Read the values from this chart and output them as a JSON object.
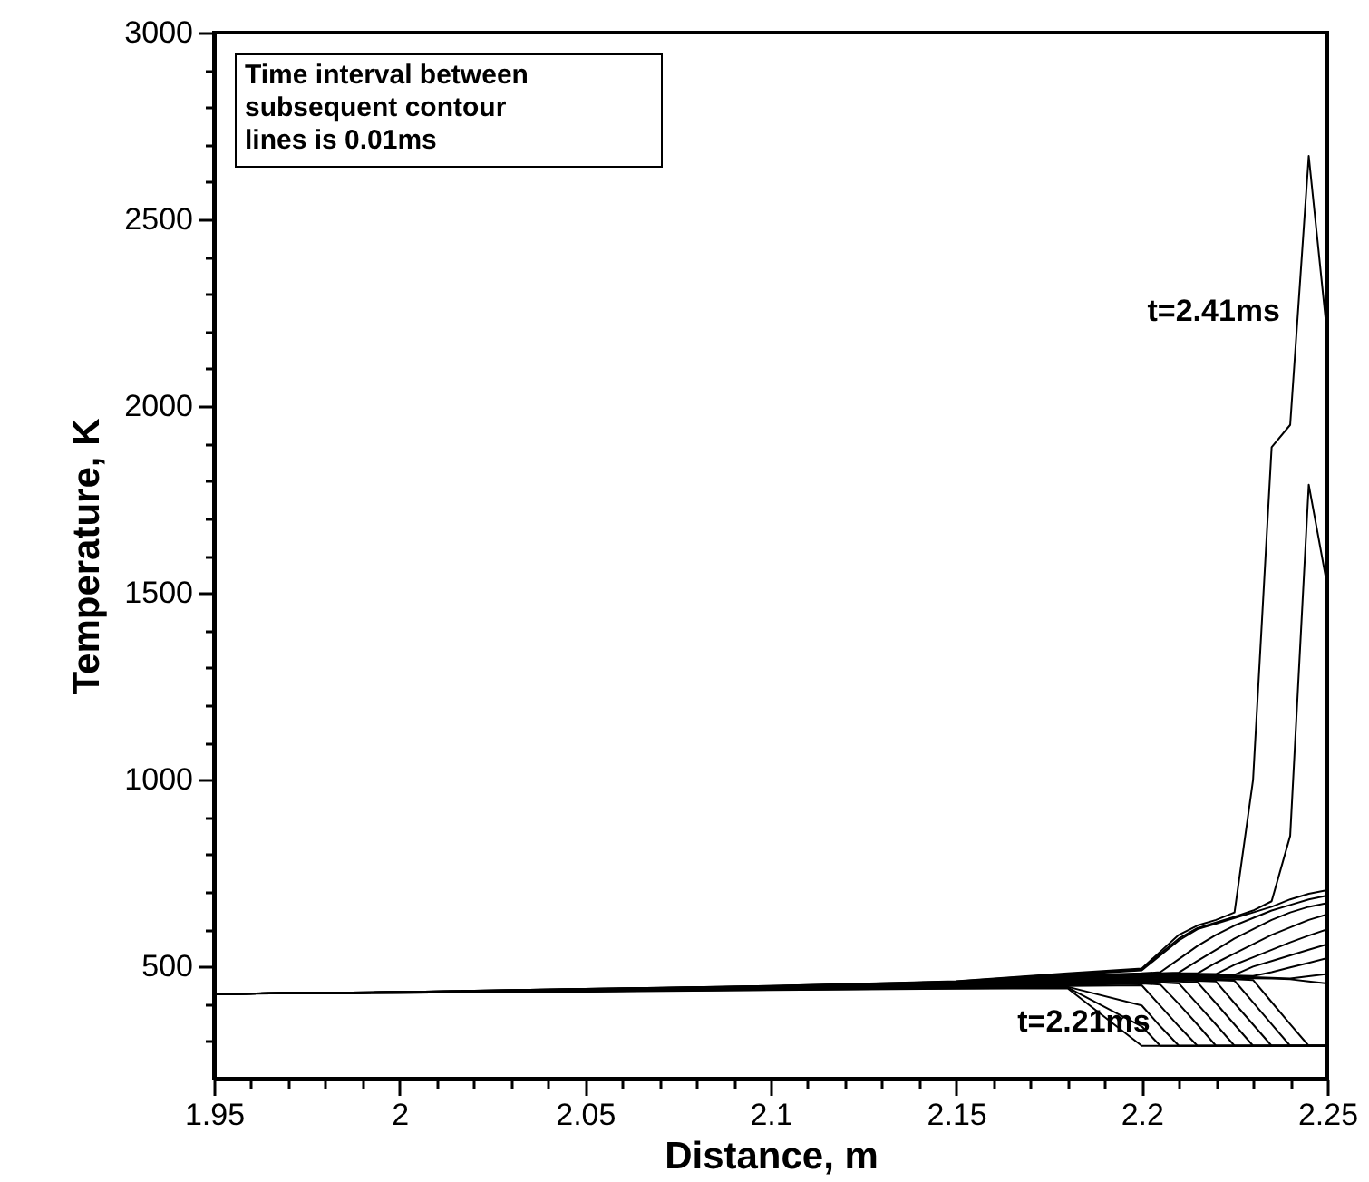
{
  "chart_data": {
    "type": "line",
    "xlabel": "Distance, m",
    "ylabel": "Temperature, K",
    "annotations": [
      "Time interval between subsequent contour lines is 0.01ms",
      {
        "text": "t=2.41ms",
        "x": 2.25,
        "y": 2190
      },
      {
        "text": "t=2.21ms",
        "x": 2.215,
        "y": 288
      }
    ],
    "x": [
      1.95,
      2.0,
      2.05,
      2.1,
      2.15,
      2.18,
      2.2,
      2.205,
      2.21,
      2.215,
      2.22,
      2.225,
      2.23,
      2.235,
      2.24,
      2.245,
      2.25
    ],
    "series": [
      {
        "color": "#000000",
        "values": [
          427,
          430,
          433,
          437,
          441,
          442,
          288,
          288,
          288,
          288,
          288,
          288,
          288,
          288,
          288,
          288,
          288
        ]
      },
      {
        "color": "#000000",
        "values": [
          427,
          430,
          434,
          438,
          442,
          444,
          340,
          288,
          288,
          288,
          288,
          288,
          288,
          288,
          288,
          288,
          288
        ]
      },
      {
        "color": "#000000",
        "values": [
          427,
          430,
          434,
          439,
          443,
          446,
          396,
          340,
          288,
          288,
          288,
          288,
          288,
          288,
          288,
          288,
          288
        ]
      },
      {
        "color": "#000000",
        "values": [
          427,
          431,
          435,
          440,
          444,
          448,
          450,
          395,
          340,
          288,
          288,
          288,
          288,
          288,
          288,
          288,
          288
        ]
      },
      {
        "color": "#000000",
        "values": [
          427,
          431,
          435,
          440,
          445,
          450,
          455,
          452,
          400,
          345,
          288,
          288,
          288,
          288,
          288,
          288,
          288
        ]
      },
      {
        "color": "#000000",
        "values": [
          427,
          431,
          436,
          441,
          446,
          452,
          458,
          458,
          455,
          400,
          345,
          288,
          288,
          288,
          288,
          288,
          288
        ]
      },
      {
        "color": "#000000",
        "values": [
          427,
          431,
          436,
          441,
          447,
          454,
          460,
          461,
          460,
          458,
          402,
          345,
          288,
          288,
          288,
          288,
          288
        ]
      },
      {
        "color": "#000000",
        "values": [
          427,
          431,
          436,
          442,
          448,
          456,
          462,
          463,
          463,
          462,
          460,
          402,
          345,
          288,
          288,
          288,
          288
        ]
      },
      {
        "color": "#000000",
        "values": [
          427,
          431,
          437,
          442,
          449,
          458,
          464,
          465,
          466,
          465,
          464,
          462,
          404,
          346,
          288,
          288,
          288
        ]
      },
      {
        "color": "#000000",
        "values": [
          427,
          431,
          437,
          443,
          450,
          460,
          466,
          467,
          468,
          468,
          467,
          466,
          464,
          405,
          346,
          288,
          288
        ]
      },
      {
        "color": "#000000",
        "values": [
          427,
          431,
          437,
          443,
          451,
          462,
          468,
          470,
          471,
          471,
          471,
          470,
          469,
          468,
          466,
          460,
          455
        ]
      },
      {
        "color": "#000000",
        "values": [
          427,
          431,
          438,
          444,
          452,
          464,
          470,
          472,
          473,
          474,
          474,
          473,
          472,
          470,
          468,
          474,
          480
        ]
      },
      {
        "color": "#000000",
        "values": [
          427,
          431,
          438,
          444,
          453,
          466,
          472,
          474,
          475,
          476,
          476,
          476,
          475,
          485,
          498,
          510,
          523
        ]
      },
      {
        "color": "#000000",
        "values": [
          427,
          431,
          438,
          445,
          454,
          468,
          474,
          476,
          478,
          479,
          479,
          478,
          500,
          515,
          530,
          545,
          560
        ]
      },
      {
        "color": "#000000",
        "values": [
          427,
          431,
          438,
          445,
          455,
          470,
          476,
          478,
          480,
          481,
          480,
          505,
          525,
          545,
          565,
          583,
          600
        ]
      },
      {
        "color": "#000000",
        "values": [
          427,
          431,
          439,
          446,
          456,
          472,
          478,
          480,
          482,
          482,
          510,
          535,
          560,
          585,
          605,
          625,
          640
        ]
      },
      {
        "color": "#000000",
        "values": [
          427,
          431,
          439,
          446,
          457,
          474,
          480,
          482,
          484,
          515,
          545,
          575,
          600,
          625,
          645,
          660,
          670
        ]
      },
      {
        "color": "#000000",
        "values": [
          427,
          432,
          439,
          447,
          458,
          476,
          482,
          485,
          520,
          555,
          585,
          610,
          630,
          650,
          665,
          680,
          690
        ]
      },
      {
        "color": "#000000",
        "values": [
          427,
          432,
          440,
          447,
          459,
          478,
          490,
          530,
          570,
          600,
          615,
          630,
          645,
          660,
          680,
          695,
          705
        ]
      },
      {
        "color": "#000000",
        "values": [
          427,
          432,
          440,
          448,
          460,
          480,
          492,
          535,
          575,
          603,
          618,
          633,
          650,
          675,
          850,
          1790,
          1520
        ]
      },
      {
        "color": "#000000",
        "values": [
          427,
          432,
          440,
          448,
          461,
          482,
          495,
          540,
          585,
          610,
          625,
          645,
          1000,
          1890,
          1950,
          2670,
          2190
        ]
      }
    ],
    "xlim": [
      1.95,
      2.25
    ],
    "xticks": [
      1.95,
      {
        "value": 1.96,
        "label": null
      },
      {
        "value": 1.97,
        "label": null
      },
      {
        "value": 1.98,
        "label": null
      },
      {
        "value": 1.99,
        "label": null
      },
      2,
      {
        "value": 2.01,
        "label": null
      },
      {
        "value": 2.02,
        "label": null
      },
      {
        "value": 2.03,
        "label": null
      },
      {
        "value": 2.04,
        "label": null
      },
      2.05,
      {
        "value": 2.06,
        "label": null
      },
      {
        "value": 2.07,
        "label": null
      },
      {
        "value": 2.08,
        "label": null
      },
      {
        "value": 2.09,
        "label": null
      },
      2.1,
      {
        "value": 2.11,
        "label": null
      },
      {
        "value": 2.12,
        "label": null
      },
      {
        "value": 2.13,
        "label": null
      },
      {
        "value": 2.14,
        "label": null
      },
      2.15,
      {
        "value": 2.16,
        "label": null
      },
      {
        "value": 2.17,
        "label": null
      },
      {
        "value": 2.18,
        "label": null
      },
      {
        "value": 2.19,
        "label": null
      },
      2.2,
      {
        "value": 2.21,
        "label": null
      },
      {
        "value": 2.22,
        "label": null
      },
      {
        "value": 2.23,
        "label": null
      },
      {
        "value": 2.24,
        "label": null
      },
      2.25
    ],
    "ylim": [
      200,
      3000
    ],
    "yticks": [
      {
        "value": 300,
        "label": null
      },
      {
        "value": 400,
        "label": null
      },
      500,
      {
        "value": 600,
        "label": null
      },
      {
        "value": 700,
        "label": null
      },
      {
        "value": 800,
        "label": null
      },
      {
        "value": 900,
        "label": null
      },
      1000,
      {
        "value": 1100,
        "label": null
      },
      {
        "value": 1200,
        "label": null
      },
      {
        "value": 1300,
        "label": null
      },
      {
        "value": 1400,
        "label": null
      },
      1500,
      {
        "value": 1600,
        "label": null
      },
      {
        "value": 1700,
        "label": null
      },
      {
        "value": 1800,
        "label": null
      },
      {
        "value": 1900,
        "label": null
      },
      2000,
      {
        "value": 2100,
        "label": null
      },
      {
        "value": 2200,
        "label": null
      },
      {
        "value": 2300,
        "label": null
      },
      {
        "value": 2400,
        "label": null
      },
      2500,
      {
        "value": 2600,
        "label": null
      },
      {
        "value": 2700,
        "label": null
      },
      {
        "value": 2800,
        "label": null
      },
      {
        "value": 2900,
        "label": null
      },
      3000
    ],
    "grid": false,
    "marker": "none",
    "line_style": "solid",
    "legend": false
  }
}
